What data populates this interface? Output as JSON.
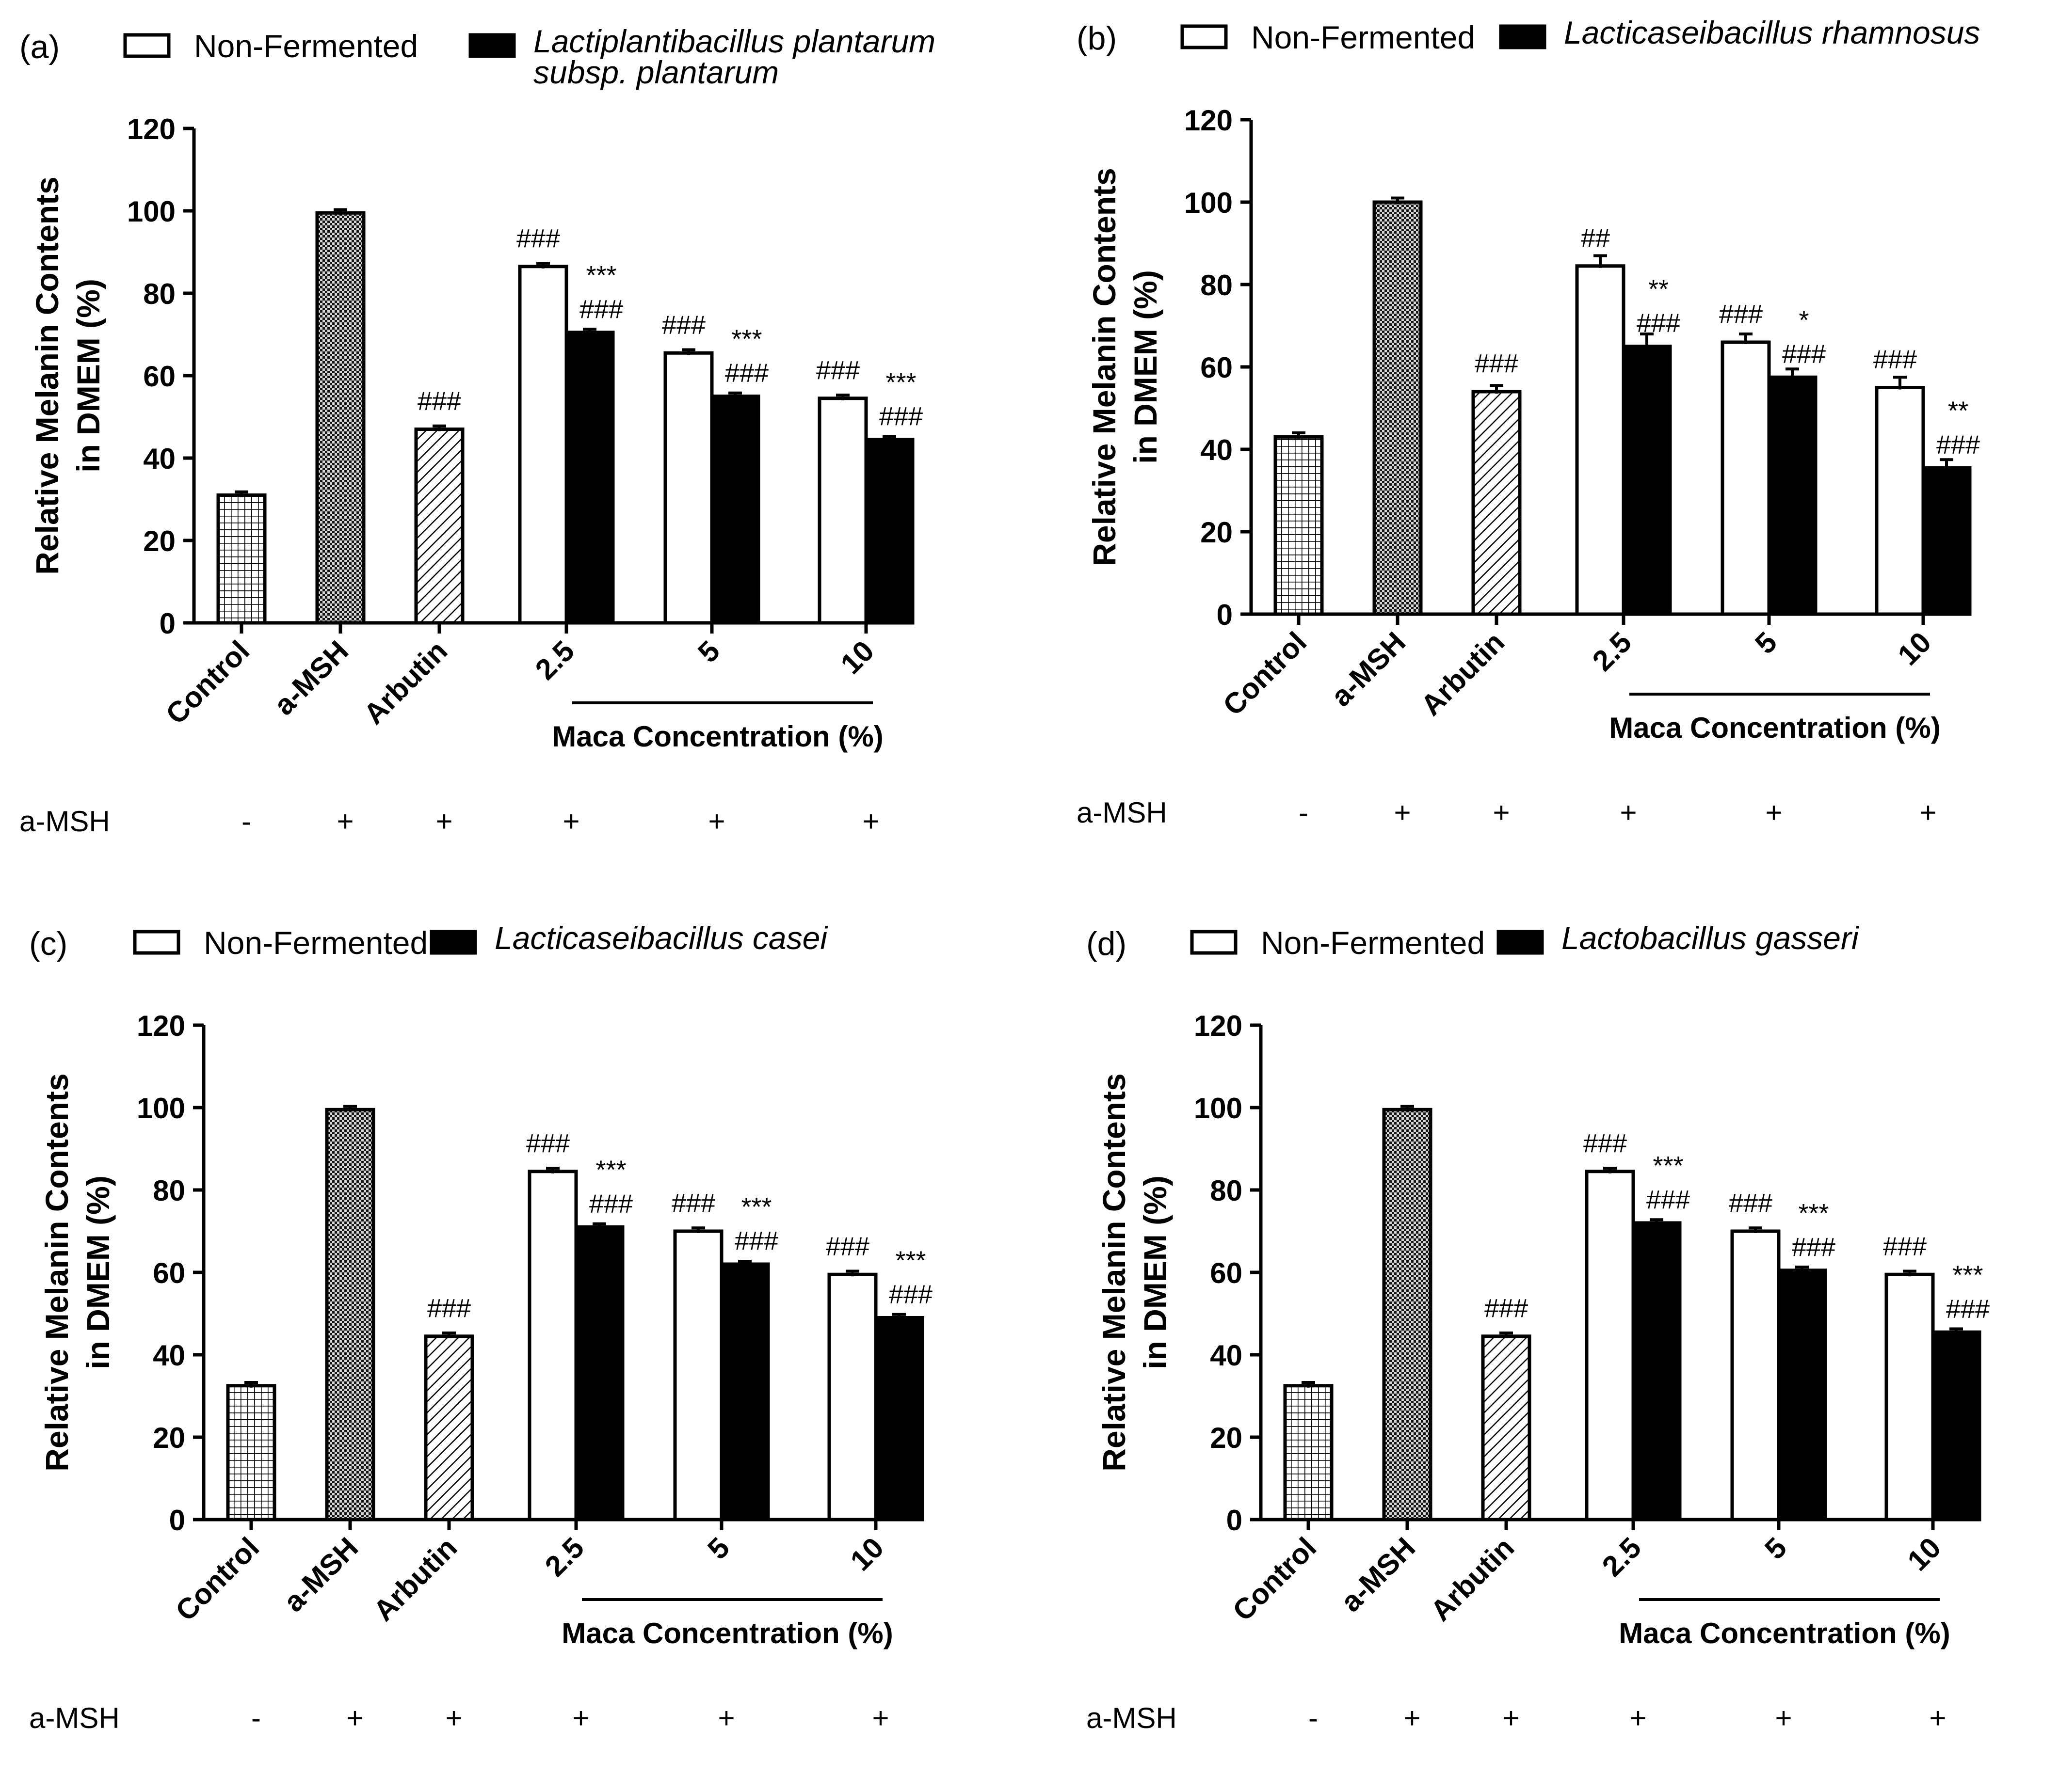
{
  "chart_data": [
    {
      "type": "bar",
      "panel_label": "(a)",
      "legend": {
        "non_fermented": "Non-Fermented",
        "fermented": [
          "Lactiplantibacillus plantarum",
          "subsp. plantarum"
        ]
      },
      "ylabel": [
        "Relative Melanin Contents",
        "in DMEM (%)"
      ],
      "ylim": [
        0,
        120
      ],
      "yticks": [
        "0",
        "20",
        "40",
        "60",
        "80",
        "100",
        "120"
      ],
      "categories": [
        "Control",
        "a-MSH",
        "Arbutin",
        "2.5",
        "5",
        "10"
      ],
      "group_label": "Maca Concentration (%)",
      "row_label": "a-MSH",
      "row_signs": [
        "-",
        "+",
        "+",
        "+",
        "+",
        "+"
      ],
      "control_bars": [
        {
          "name": "Control",
          "value": 31,
          "error": 0.8
        },
        {
          "name": "a-MSH",
          "value": 99.5,
          "error": 0.8
        },
        {
          "name": "Arbutin",
          "value": 47,
          "error": 0.8
        }
      ],
      "non_fermented": {
        "values": [
          86.5,
          65.5,
          54.5
        ],
        "errors": [
          0.8,
          0.8,
          0.8
        ],
        "labels": [
          [
            "###"
          ],
          [
            "###"
          ],
          [
            "###"
          ]
        ]
      },
      "fermented": {
        "values": [
          70.5,
          55,
          44.5
        ],
        "errors": [
          0.8,
          0.8,
          0.8
        ],
        "labels": [
          [
            "***",
            "###"
          ],
          [
            "***",
            "###"
          ],
          [
            "***",
            "###"
          ]
        ]
      },
      "arbutin_label": "###"
    },
    {
      "type": "bar",
      "panel_label": "(b)",
      "legend": {
        "non_fermented": "Non-Fermented",
        "fermented": [
          "Lacticaseibacillus rhamnosus"
        ]
      },
      "ylabel": [
        "Relative Melanin Contents",
        "in DMEM (%)"
      ],
      "ylim": [
        0,
        120
      ],
      "yticks": [
        "0",
        "20",
        "40",
        "60",
        "80",
        "100",
        "120"
      ],
      "categories": [
        "Control",
        "a-MSH",
        "Arbutin",
        "2.5",
        "5",
        "10"
      ],
      "group_label": "Maca Concentration (%)",
      "row_label": "a-MSH",
      "row_signs": [
        "-",
        "+",
        "+",
        "+",
        "+",
        "+"
      ],
      "control_bars": [
        {
          "name": "Control",
          "value": 43,
          "error": 1
        },
        {
          "name": "a-MSH",
          "value": 100,
          "error": 1
        },
        {
          "name": "Arbutin",
          "value": 54,
          "error": 1.5
        }
      ],
      "non_fermented": {
        "values": [
          84.5,
          66,
          55
        ],
        "errors": [
          2.5,
          2,
          2.5
        ],
        "labels": [
          [
            "##"
          ],
          [
            "###"
          ],
          [
            "###"
          ]
        ]
      },
      "fermented": {
        "values": [
          65,
          57.5,
          35.5
        ],
        "errors": [
          3,
          2,
          2
        ],
        "labels": [
          [
            "**",
            "###"
          ],
          [
            "*",
            "###"
          ],
          [
            "**",
            "###"
          ]
        ]
      },
      "arbutin_label": "###"
    },
    {
      "type": "bar",
      "panel_label": "(c)",
      "legend": {
        "non_fermented": "Non-Fermented",
        "fermented": [
          "Lacticaseibacillus casei"
        ]
      },
      "ylabel": [
        "Relative Melanin Contents",
        "in DMEM (%)"
      ],
      "ylim": [
        0,
        120
      ],
      "yticks": [
        "0",
        "20",
        "40",
        "60",
        "80",
        "100",
        "120"
      ],
      "categories": [
        "Control",
        "a-MSH",
        "Arbutin",
        "2.5",
        "5",
        "10"
      ],
      "group_label": "Maca Concentration (%)",
      "row_label": "a-MSH",
      "row_signs": [
        "-",
        "+",
        "+",
        "+",
        "+",
        "+"
      ],
      "control_bars": [
        {
          "name": "Control",
          "value": 32.5,
          "error": 0.8
        },
        {
          "name": "a-MSH",
          "value": 99.5,
          "error": 0.8
        },
        {
          "name": "Arbutin",
          "value": 44.5,
          "error": 0.8
        }
      ],
      "non_fermented": {
        "values": [
          84.5,
          70,
          59.5
        ],
        "errors": [
          0.8,
          0.8,
          0.8
        ],
        "labels": [
          [
            "###"
          ],
          [
            "###"
          ],
          [
            "###"
          ]
        ]
      },
      "fermented": {
        "values": [
          71,
          62,
          49
        ],
        "errors": [
          0.8,
          0.3,
          0.8
        ],
        "labels": [
          [
            "***",
            "###"
          ],
          [
            "***",
            "###"
          ],
          [
            "***",
            "###"
          ]
        ]
      },
      "arbutin_label": "###"
    },
    {
      "type": "bar",
      "panel_label": "(d)",
      "legend": {
        "non_fermented": "Non-Fermented",
        "fermented": [
          "Lactobacillus gasseri"
        ]
      },
      "ylabel": [
        "Relative Melanin Contents",
        "in DMEM (%)"
      ],
      "ylim": [
        0,
        120
      ],
      "yticks": [
        "0",
        "20",
        "40",
        "60",
        "80",
        "100",
        "120"
      ],
      "categories": [
        "Control",
        "a-MSH",
        "Arbutin",
        "2.5",
        "5",
        "10"
      ],
      "group_label": "Maca Concentration (%)",
      "row_label": "a-MSH",
      "row_signs": [
        "-",
        "+",
        "+",
        "+",
        "+",
        "+"
      ],
      "control_bars": [
        {
          "name": "Control",
          "value": 32.5,
          "error": 0.8
        },
        {
          "name": "a-MSH",
          "value": 99.5,
          "error": 0.8
        },
        {
          "name": "Arbutin",
          "value": 44.5,
          "error": 0.8
        }
      ],
      "non_fermented": {
        "values": [
          84.5,
          70,
          59.5
        ],
        "errors": [
          0.8,
          0.8,
          0.8
        ],
        "labels": [
          [
            "###"
          ],
          [
            "###"
          ],
          [
            "###"
          ]
        ]
      },
      "fermented": {
        "values": [
          72,
          60.5,
          45.5
        ],
        "errors": [
          0.8,
          0.8,
          0.8
        ],
        "labels": [
          [
            "***",
            "###"
          ],
          [
            "***",
            "###"
          ],
          [
            "***",
            "###"
          ]
        ]
      },
      "arbutin_label": "###"
    }
  ]
}
